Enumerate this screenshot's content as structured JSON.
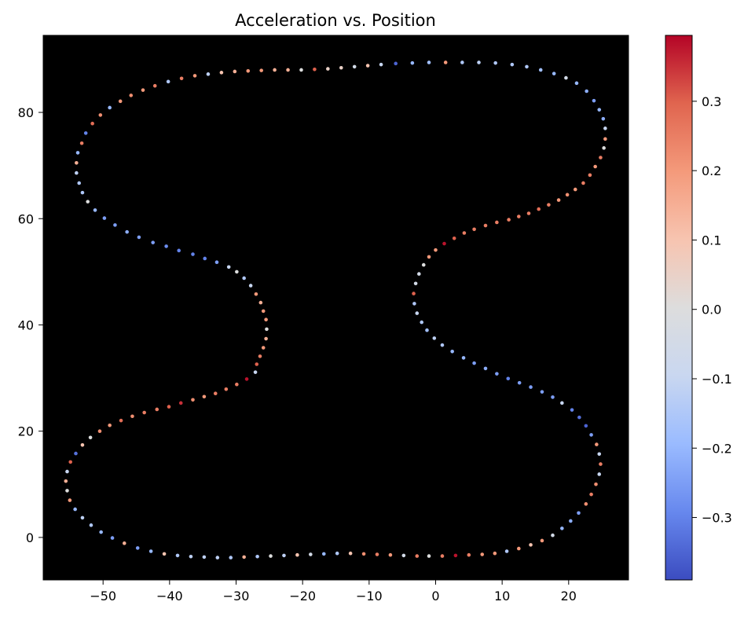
{
  "chart_data": {
    "type": "scatter",
    "title": "Acceleration vs. Position",
    "xlabel": "",
    "ylabel": "",
    "xlim": [
      -59,
      29
    ],
    "ylim": [
      -8,
      94.5
    ],
    "x_ticks": [
      -50,
      -40,
      -30,
      -20,
      -10,
      0,
      10,
      20
    ],
    "y_ticks": [
      0,
      20,
      40,
      60,
      80
    ],
    "background": "#000000",
    "grid": false,
    "colormap": "coolwarm",
    "colorbar": {
      "vmin": -0.39,
      "vmax": 0.395,
      "ticks": [
        -0.3,
        -0.2,
        -0.1,
        0.0,
        0.1,
        0.2,
        0.3
      ],
      "tick_labels": [
        "−0.3",
        "−0.2",
        "−0.1",
        "0.0",
        "0.1",
        "0.2",
        "0.3"
      ]
    },
    "colormap_stops": [
      "#3b4cc0",
      "#6788ee",
      "#9abbff",
      "#c9d7f0",
      "#dddddd",
      "#f7c4b0",
      "#f49a7b",
      "#e0654f",
      "#b40426"
    ],
    "points": [
      {
        "x": -6.0,
        "y": 89.2,
        "c": -0.35
      },
      {
        "x": -3.5,
        "y": 89.3,
        "c": -0.2
      },
      {
        "x": -1.0,
        "y": 89.4,
        "c": -0.18
      },
      {
        "x": 1.5,
        "y": 89.4,
        "c": 0.2
      },
      {
        "x": 4.0,
        "y": 89.4,
        "c": -0.15
      },
      {
        "x": 6.5,
        "y": 89.4,
        "c": -0.12
      },
      {
        "x": 9.0,
        "y": 89.3,
        "c": -0.15
      },
      {
        "x": 11.5,
        "y": 89.0,
        "c": -0.15
      },
      {
        "x": 13.7,
        "y": 88.6,
        "c": -0.15
      },
      {
        "x": 15.8,
        "y": 88.0,
        "c": -0.18
      },
      {
        "x": 17.8,
        "y": 87.3,
        "c": -0.2
      },
      {
        "x": 19.6,
        "y": 86.5,
        "c": -0.05
      },
      {
        "x": 21.2,
        "y": 85.5,
        "c": -0.2
      },
      {
        "x": 22.7,
        "y": 84.0,
        "c": -0.22
      },
      {
        "x": 23.8,
        "y": 82.2,
        "c": -0.25
      },
      {
        "x": 24.6,
        "y": 80.5,
        "c": -0.2
      },
      {
        "x": 25.2,
        "y": 78.8,
        "c": -0.22
      },
      {
        "x": 25.5,
        "y": 77.0,
        "c": -0.1
      },
      {
        "x": 25.5,
        "y": 75.0,
        "c": 0.2
      },
      {
        "x": 25.3,
        "y": 73.3,
        "c": 0.0
      },
      {
        "x": 24.8,
        "y": 71.5,
        "c": 0.25
      },
      {
        "x": 24.0,
        "y": 69.8,
        "c": 0.2
      },
      {
        "x": 23.2,
        "y": 68.2,
        "c": 0.25
      },
      {
        "x": 22.2,
        "y": 66.7,
        "c": 0.25
      },
      {
        "x": 21.0,
        "y": 65.5,
        "c": 0.2
      },
      {
        "x": 19.8,
        "y": 64.5,
        "c": 0.22
      },
      {
        "x": 18.5,
        "y": 63.5,
        "c": 0.2
      },
      {
        "x": 17.0,
        "y": 62.6,
        "c": 0.25
      },
      {
        "x": 15.5,
        "y": 61.8,
        "c": 0.28
      },
      {
        "x": 14.0,
        "y": 61.0,
        "c": 0.25
      },
      {
        "x": 12.5,
        "y": 60.4,
        "c": 0.25
      },
      {
        "x": 11.0,
        "y": 59.8,
        "c": 0.25
      },
      {
        "x": 9.2,
        "y": 59.3,
        "c": 0.25
      },
      {
        "x": 7.5,
        "y": 58.7,
        "c": 0.25
      },
      {
        "x": 5.8,
        "y": 58.0,
        "c": 0.25
      },
      {
        "x": 4.3,
        "y": 57.3,
        "c": 0.25
      },
      {
        "x": 2.8,
        "y": 56.3,
        "c": 0.3
      },
      {
        "x": 1.3,
        "y": 55.3,
        "c": 0.38
      },
      {
        "x": 0.0,
        "y": 54.1,
        "c": 0.2
      },
      {
        "x": -1.0,
        "y": 52.8,
        "c": 0.2
      },
      {
        "x": -1.8,
        "y": 51.3,
        "c": 0.0
      },
      {
        "x": -2.5,
        "y": 49.6,
        "c": -0.05
      },
      {
        "x": -3.0,
        "y": 47.8,
        "c": -0.05
      },
      {
        "x": -3.3,
        "y": 45.9,
        "c": 0.3
      },
      {
        "x": -3.2,
        "y": 44.0,
        "c": -0.15
      },
      {
        "x": -2.8,
        "y": 42.2,
        "c": -0.1
      },
      {
        "x": -2.1,
        "y": 40.5,
        "c": -0.15
      },
      {
        "x": -1.3,
        "y": 39.0,
        "c": -0.18
      },
      {
        "x": -0.2,
        "y": 37.5,
        "c": -0.12
      },
      {
        "x": 1.0,
        "y": 36.2,
        "c": -0.15
      },
      {
        "x": 2.5,
        "y": 35.0,
        "c": -0.2
      },
      {
        "x": 4.2,
        "y": 33.8,
        "c": -0.2
      },
      {
        "x": 5.8,
        "y": 32.8,
        "c": -0.25
      },
      {
        "x": 7.5,
        "y": 31.8,
        "c": -0.22
      },
      {
        "x": 9.2,
        "y": 30.8,
        "c": -0.25
      },
      {
        "x": 10.9,
        "y": 29.9,
        "c": -0.3
      },
      {
        "x": 12.6,
        "y": 29.1,
        "c": -0.25
      },
      {
        "x": 14.3,
        "y": 28.3,
        "c": -0.25
      },
      {
        "x": 16.0,
        "y": 27.4,
        "c": -0.25
      },
      {
        "x": 17.6,
        "y": 26.4,
        "c": -0.25
      },
      {
        "x": 19.0,
        "y": 25.3,
        "c": -0.1
      },
      {
        "x": 20.5,
        "y": 24.0,
        "c": -0.3
      },
      {
        "x": 21.6,
        "y": 22.6,
        "c": -0.33
      },
      {
        "x": 22.6,
        "y": 21.0,
        "c": -0.35
      },
      {
        "x": 23.4,
        "y": 19.3,
        "c": -0.25
      },
      {
        "x": 24.2,
        "y": 17.5,
        "c": 0.2
      },
      {
        "x": 24.6,
        "y": 15.7,
        "c": -0.1
      },
      {
        "x": 24.8,
        "y": 13.8,
        "c": 0.25
      },
      {
        "x": 24.6,
        "y": 11.9,
        "c": -0.1
      },
      {
        "x": 24.1,
        "y": 10.0,
        "c": 0.22
      },
      {
        "x": 23.4,
        "y": 8.1,
        "c": 0.25
      },
      {
        "x": 22.6,
        "y": 6.3,
        "c": 0.22
      },
      {
        "x": 21.5,
        "y": 4.6,
        "c": -0.25
      },
      {
        "x": 20.3,
        "y": 3.1,
        "c": -0.22
      },
      {
        "x": 19.0,
        "y": 1.7,
        "c": -0.2
      },
      {
        "x": 17.6,
        "y": 0.4,
        "c": -0.05
      },
      {
        "x": 16.0,
        "y": -0.6,
        "c": 0.2
      },
      {
        "x": 14.3,
        "y": -1.4,
        "c": 0.1
      },
      {
        "x": 12.5,
        "y": -2.1,
        "c": 0.2
      },
      {
        "x": 10.7,
        "y": -2.6,
        "c": -0.15
      },
      {
        "x": 8.9,
        "y": -3.0,
        "c": 0.2
      },
      {
        "x": 7.0,
        "y": -3.2,
        "c": 0.2
      },
      {
        "x": 5.0,
        "y": -3.3,
        "c": 0.25
      },
      {
        "x": 3.0,
        "y": -3.4,
        "c": 0.38
      },
      {
        "x": 1.0,
        "y": -3.5,
        "c": 0.25
      },
      {
        "x": -1.0,
        "y": -3.5,
        "c": 0.0
      },
      {
        "x": -2.8,
        "y": -3.5,
        "c": 0.25
      },
      {
        "x": -4.8,
        "y": -3.4,
        "c": -0.05
      },
      {
        "x": -6.8,
        "y": -3.3,
        "c": 0.2
      },
      {
        "x": -8.8,
        "y": -3.2,
        "c": 0.25
      },
      {
        "x": -10.8,
        "y": -3.1,
        "c": 0.22
      },
      {
        "x": -12.8,
        "y": -3.0,
        "c": 0.1
      },
      {
        "x": -14.8,
        "y": -3.0,
        "c": -0.15
      },
      {
        "x": -16.8,
        "y": -3.1,
        "c": -0.2
      },
      {
        "x": -18.8,
        "y": -3.2,
        "c": -0.05
      },
      {
        "x": -20.8,
        "y": -3.3,
        "c": 0.1
      },
      {
        "x": -22.8,
        "y": -3.4,
        "c": -0.12
      },
      {
        "x": -24.8,
        "y": -3.5,
        "c": 0.0
      },
      {
        "x": -26.8,
        "y": -3.6,
        "c": -0.15
      },
      {
        "x": -28.8,
        "y": -3.7,
        "c": 0.15
      },
      {
        "x": -30.8,
        "y": -3.8,
        "c": -0.15
      },
      {
        "x": -32.8,
        "y": -3.8,
        "c": -0.12
      },
      {
        "x": -34.8,
        "y": -3.7,
        "c": -0.12
      },
      {
        "x": -36.8,
        "y": -3.6,
        "c": -0.12
      },
      {
        "x": -38.8,
        "y": -3.4,
        "c": -0.15
      },
      {
        "x": -40.8,
        "y": -3.1,
        "c": 0.1
      },
      {
        "x": -42.8,
        "y": -2.6,
        "c": -0.2
      },
      {
        "x": -44.8,
        "y": -2.0,
        "c": -0.25
      },
      {
        "x": -46.8,
        "y": -1.1,
        "c": 0.15
      },
      {
        "x": -48.6,
        "y": -0.1,
        "c": -0.25
      },
      {
        "x": -50.3,
        "y": 1.0,
        "c": -0.2
      },
      {
        "x": -51.8,
        "y": 2.3,
        "c": -0.15
      },
      {
        "x": -53.1,
        "y": 3.7,
        "c": -0.12
      },
      {
        "x": -54.2,
        "y": 5.3,
        "c": -0.2
      },
      {
        "x": -55.0,
        "y": 7.0,
        "c": 0.2
      },
      {
        "x": -55.4,
        "y": 8.8,
        "c": 0.0
      },
      {
        "x": -55.6,
        "y": 10.6,
        "c": 0.15
      },
      {
        "x": -55.4,
        "y": 12.4,
        "c": -0.1
      },
      {
        "x": -54.9,
        "y": 14.2,
        "c": 0.3
      },
      {
        "x": -54.1,
        "y": 15.8,
        "c": -0.33
      },
      {
        "x": -53.1,
        "y": 17.4,
        "c": 0.1
      },
      {
        "x": -51.9,
        "y": 18.8,
        "c": 0.0
      },
      {
        "x": -50.5,
        "y": 20.0,
        "c": 0.22
      },
      {
        "x": -49.0,
        "y": 21.1,
        "c": 0.2
      },
      {
        "x": -47.3,
        "y": 22.0,
        "c": 0.28
      },
      {
        "x": -45.6,
        "y": 22.8,
        "c": 0.22
      },
      {
        "x": -43.8,
        "y": 23.5,
        "c": 0.25
      },
      {
        "x": -41.9,
        "y": 24.1,
        "c": 0.25
      },
      {
        "x": -40.1,
        "y": 24.6,
        "c": 0.3
      },
      {
        "x": -38.3,
        "y": 25.3,
        "c": 0.35
      },
      {
        "x": -36.5,
        "y": 25.9,
        "c": 0.22
      },
      {
        "x": -34.8,
        "y": 26.5,
        "c": 0.2
      },
      {
        "x": -33.1,
        "y": 27.1,
        "c": 0.25
      },
      {
        "x": -31.5,
        "y": 27.9,
        "c": 0.25
      },
      {
        "x": -29.9,
        "y": 28.8,
        "c": 0.25
      },
      {
        "x": -28.4,
        "y": 29.8,
        "c": 0.38
      },
      {
        "x": -27.1,
        "y": 31.1,
        "c": -0.1
      },
      {
        "x": -26.9,
        "y": 32.6,
        "c": 0.3
      },
      {
        "x": -26.4,
        "y": 34.1,
        "c": 0.25
      },
      {
        "x": -25.9,
        "y": 35.7,
        "c": 0.2
      },
      {
        "x": -25.5,
        "y": 37.4,
        "c": 0.15
      },
      {
        "x": -25.4,
        "y": 39.2,
        "c": 0.0
      },
      {
        "x": -25.5,
        "y": 41.0,
        "c": 0.2
      },
      {
        "x": -25.9,
        "y": 42.6,
        "c": 0.2
      },
      {
        "x": -26.3,
        "y": 44.2,
        "c": 0.15
      },
      {
        "x": -27.0,
        "y": 45.8,
        "c": 0.2
      },
      {
        "x": -27.8,
        "y": 47.4,
        "c": -0.1
      },
      {
        "x": -28.8,
        "y": 48.8,
        "c": -0.15
      },
      {
        "x": -29.9,
        "y": 50.0,
        "c": 0.0
      },
      {
        "x": -31.1,
        "y": 50.9,
        "c": -0.1
      },
      {
        "x": -32.9,
        "y": 51.8,
        "c": -0.25
      },
      {
        "x": -34.7,
        "y": 52.5,
        "c": -0.3
      },
      {
        "x": -36.5,
        "y": 53.3,
        "c": -0.3
      },
      {
        "x": -38.6,
        "y": 54.0,
        "c": -0.3
      },
      {
        "x": -40.5,
        "y": 54.8,
        "c": -0.28
      },
      {
        "x": -42.5,
        "y": 55.5,
        "c": -0.25
      },
      {
        "x": -44.6,
        "y": 56.5,
        "c": -0.25
      },
      {
        "x": -46.4,
        "y": 57.5,
        "c": -0.22
      },
      {
        "x": -48.2,
        "y": 58.8,
        "c": -0.25
      },
      {
        "x": -49.8,
        "y": 60.1,
        "c": -0.25
      },
      {
        "x": -51.2,
        "y": 61.6,
        "c": -0.2
      },
      {
        "x": -52.3,
        "y": 63.2,
        "c": 0.0
      },
      {
        "x": -53.1,
        "y": 64.9,
        "c": -0.15
      },
      {
        "x": -53.6,
        "y": 66.7,
        "c": -0.15
      },
      {
        "x": -54.0,
        "y": 68.6,
        "c": -0.12
      },
      {
        "x": -54.0,
        "y": 70.5,
        "c": 0.15
      },
      {
        "x": -53.8,
        "y": 72.4,
        "c": -0.2
      },
      {
        "x": -53.2,
        "y": 74.2,
        "c": 0.25
      },
      {
        "x": -52.6,
        "y": 76.1,
        "c": -0.3
      },
      {
        "x": -51.6,
        "y": 77.9,
        "c": 0.28
      },
      {
        "x": -50.4,
        "y": 79.5,
        "c": 0.22
      },
      {
        "x": -49.0,
        "y": 80.9,
        "c": -0.2
      },
      {
        "x": -47.4,
        "y": 82.1,
        "c": 0.2
      },
      {
        "x": -45.8,
        "y": 83.2,
        "c": 0.22
      },
      {
        "x": -44.0,
        "y": 84.2,
        "c": 0.2
      },
      {
        "x": -42.2,
        "y": 85.0,
        "c": 0.25
      },
      {
        "x": -40.2,
        "y": 85.8,
        "c": -0.15
      },
      {
        "x": -38.2,
        "y": 86.4,
        "c": 0.25
      },
      {
        "x": -36.2,
        "y": 86.9,
        "c": 0.2
      },
      {
        "x": -34.2,
        "y": 87.2,
        "c": -0.12
      },
      {
        "x": -32.2,
        "y": 87.5,
        "c": 0.1
      },
      {
        "x": -30.2,
        "y": 87.7,
        "c": 0.15
      },
      {
        "x": -28.2,
        "y": 87.8,
        "c": 0.2
      },
      {
        "x": -26.2,
        "y": 87.9,
        "c": 0.2
      },
      {
        "x": -24.2,
        "y": 88.0,
        "c": 0.15
      },
      {
        "x": -22.2,
        "y": 88.0,
        "c": 0.15
      },
      {
        "x": -20.2,
        "y": 88.0,
        "c": 0.0
      },
      {
        "x": -18.2,
        "y": 88.1,
        "c": 0.3
      },
      {
        "x": -16.2,
        "y": 88.2,
        "c": 0.05
      },
      {
        "x": -14.2,
        "y": 88.4,
        "c": 0.05
      },
      {
        "x": -12.2,
        "y": 88.6,
        "c": -0.05
      },
      {
        "x": -10.2,
        "y": 88.8,
        "c": 0.1
      },
      {
        "x": -8.2,
        "y": 89.0,
        "c": -0.1
      }
    ]
  }
}
